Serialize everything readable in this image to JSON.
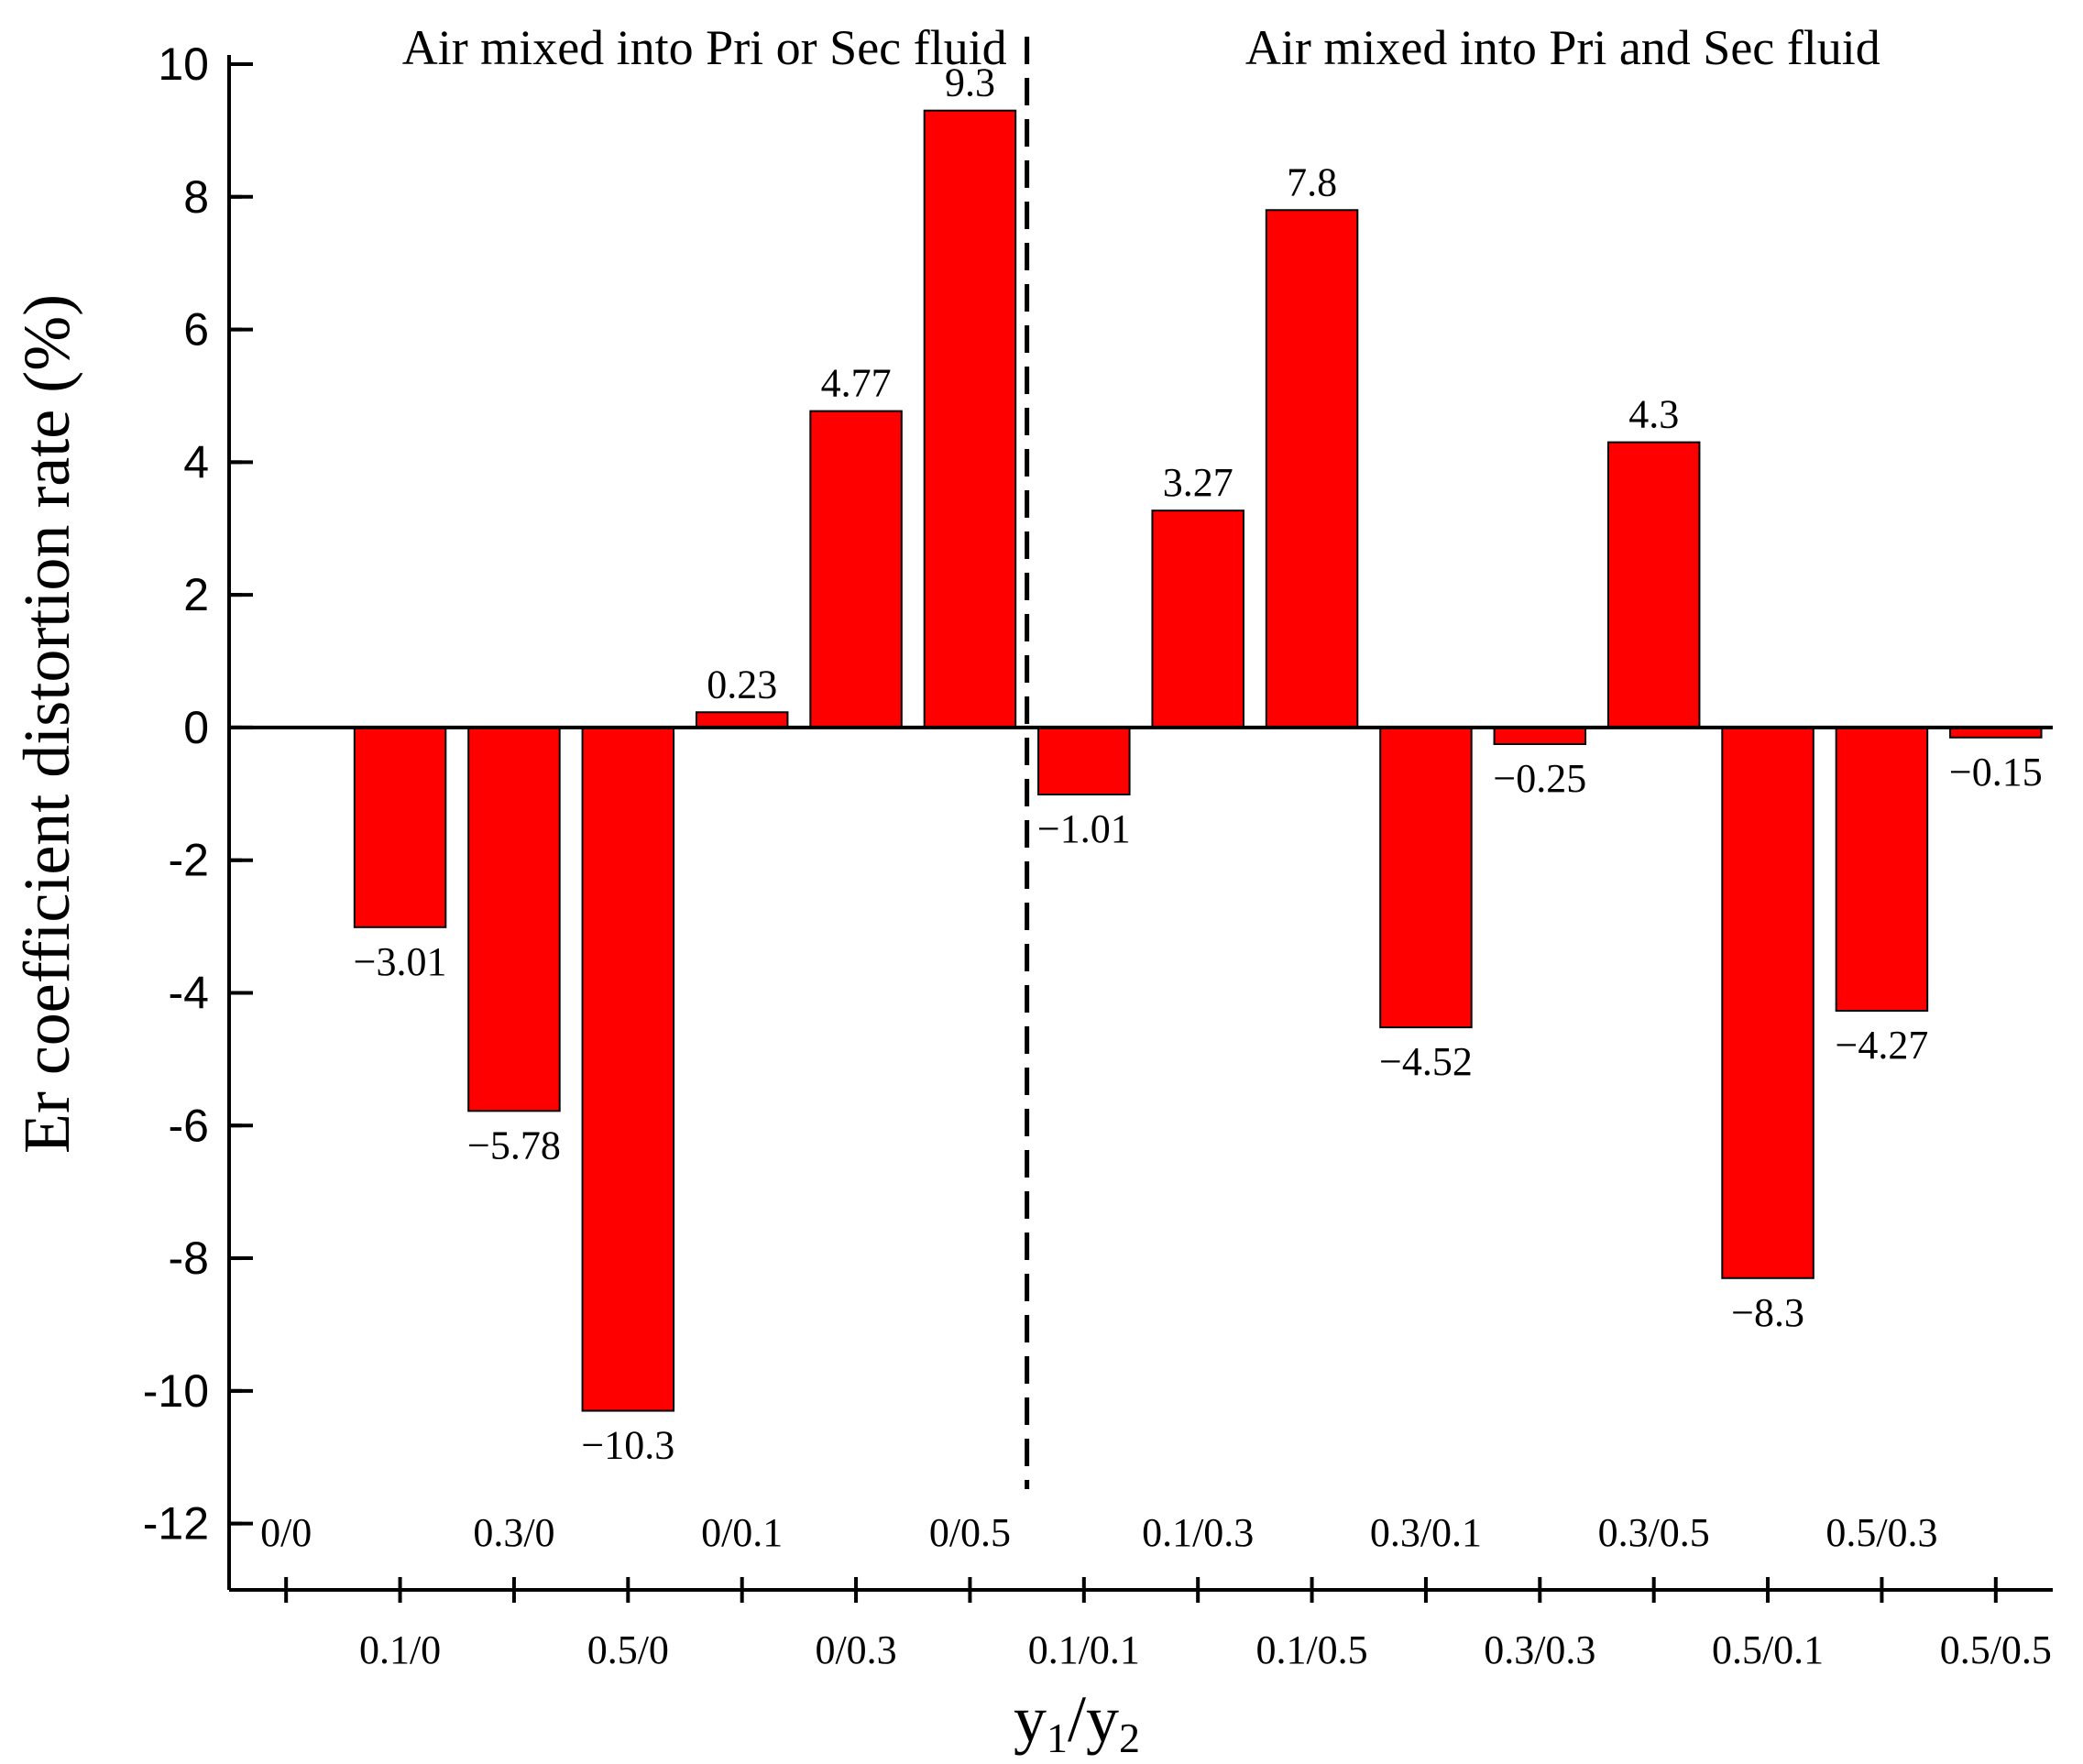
{
  "chart_data": {
    "type": "bar",
    "title": "",
    "xlabel": "y1/y2",
    "xlabel_parts": {
      "base1": "y",
      "sub1": "1",
      "sep": "/",
      "base2": "y",
      "sub2": "2"
    },
    "ylabel": "Er coefficient distortion rate (%)",
    "ylim": [
      -13,
      10
    ],
    "yticks": [
      {
        "value": 10,
        "label": "10"
      },
      {
        "value": 8,
        "label": "8"
      },
      {
        "value": 6,
        "label": "6"
      },
      {
        "value": 4,
        "label": "4"
      },
      {
        "value": 2,
        "label": "2"
      },
      {
        "value": 0,
        "label": "0"
      },
      {
        "value": -2,
        "label": "-2"
      },
      {
        "value": -4,
        "label": "-4"
      },
      {
        "value": -6,
        "label": "-6"
      },
      {
        "value": -8,
        "label": "-8"
      },
      {
        "value": -10,
        "label": "-10"
      },
      {
        "value": -12,
        "label": "-12"
      }
    ],
    "categories": [
      "0/0",
      "0.1/0",
      "0.3/0",
      "0.5/0",
      "0/0.1",
      "0/0.3",
      "0/0.5",
      "0.1/0.1",
      "0.1/0.3",
      "0.1/0.5",
      "0.3/0.1",
      "0.3/0.3",
      "0.3/0.5",
      "0.5/0.1",
      "0.5/0.3",
      "0.5/0.5"
    ],
    "values": [
      0,
      -3.01,
      -5.78,
      -10.3,
      0.23,
      4.77,
      9.3,
      -1.01,
      3.27,
      7.8,
      -4.52,
      -0.25,
      4.3,
      -8.3,
      -4.27,
      -0.15
    ],
    "data_labels": [
      "",
      "−3.01",
      "−5.78",
      "−10.3",
      "0.23",
      "4.77",
      "9.3",
      "−1.01",
      "3.27",
      "7.8",
      "−4.52",
      "−0.25",
      "4.3",
      "−8.3",
      "−4.27",
      "−0.15"
    ],
    "bar_color": "#ff0000",
    "regions": [
      {
        "label": "Air mixed into Pri or Sec fluid",
        "from_category": 0,
        "to_category": 6
      },
      {
        "label": "Air mixed into Pri and Sec fluid",
        "from_category": 7,
        "to_category": 15
      }
    ],
    "divider_between": [
      6,
      7
    ],
    "legend": "none",
    "grid": false
  }
}
